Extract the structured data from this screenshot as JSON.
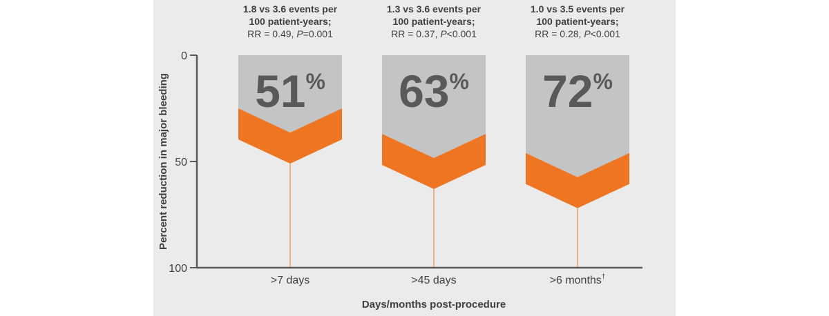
{
  "colors": {
    "panel_background": "#ebebeb",
    "bar_fill": "#c3c4c6",
    "chevron_fill": "#ee7623",
    "axis": "#58595b",
    "percent_text": "#58595b",
    "text": "#414042"
  },
  "chart_data": {
    "type": "bar",
    "title": "",
    "xlabel": "Days/months post-procedure",
    "ylabel": "Percent reduction in major bleeding",
    "ylim": [
      0,
      100
    ],
    "y_inverted": true,
    "yticks": [
      0,
      50,
      100
    ],
    "grid": false,
    "categories": [
      ">7 days",
      ">45 days",
      ">6 months"
    ],
    "category_superscripts": [
      "",
      "",
      "†"
    ],
    "values": [
      51,
      63,
      72
    ],
    "value_labels": [
      "51",
      "63",
      "72"
    ],
    "value_label_suffix": "%",
    "annotations": [
      {
        "line1": "1.8 vs 3.6 events per",
        "line2": "100 patient-years;",
        "rr": "RR = 0.49, ",
        "p_symbol": "P",
        "p_value": "=0.001"
      },
      {
        "line1": "1.3 vs 3.6 events per",
        "line2": "100 patient-years;",
        "rr": "RR = 0.37, ",
        "p_symbol": "P",
        "p_value": "<0.001"
      },
      {
        "line1": "1.0 vs 3.5 events per",
        "line2": "100 patient-years;",
        "rr": "RR = 0.28, ",
        "p_symbol": "P",
        "p_value": "<0.001"
      }
    ]
  }
}
